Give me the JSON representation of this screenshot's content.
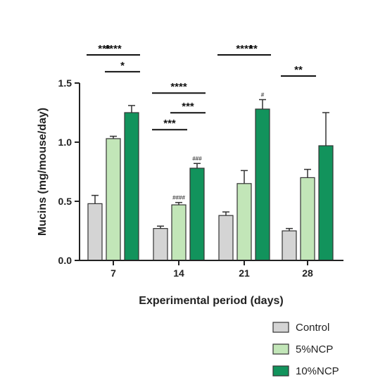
{
  "chart_data": {
    "type": "bar",
    "xlabel": "Experimental period (days)",
    "ylabel": "Mucins (mg/mouse/day)",
    "ylim": [
      0,
      1.5
    ],
    "yticks": [
      "0.0",
      "0.5",
      "1.0",
      "1.5"
    ],
    "categories": [
      "7",
      "14",
      "21",
      "28"
    ],
    "series": [
      {
        "name": "Control",
        "color": "#d4d4d4",
        "values": [
          0.48,
          0.27,
          0.38,
          0.25
        ],
        "errors": [
          0.07,
          0.02,
          0.03,
          0.02
        ]
      },
      {
        "name": "5%NCP",
        "color": "#c2e6b8",
        "values": [
          1.03,
          0.47,
          0.65,
          0.7
        ],
        "errors": [
          0.02,
          0.02,
          0.11,
          0.07
        ]
      },
      {
        "name": "10%NCP",
        "color": "#12935c",
        "values": [
          1.25,
          0.78,
          1.28,
          0.97
        ],
        "errors": [
          0.06,
          0.04,
          0.08,
          0.28
        ]
      }
    ],
    "significance": [
      {
        "group": 0,
        "from": 0,
        "to": 2,
        "level": 0,
        "label": "****"
      },
      {
        "group": 0,
        "from": 0,
        "to": 1,
        "level": 1,
        "label": "***"
      },
      {
        "group": 0,
        "from": 1,
        "to": 2,
        "level": 2,
        "label": "*"
      },
      {
        "group": 1,
        "from": 0,
        "to": 2,
        "level": 0,
        "label": "****"
      },
      {
        "group": 1,
        "from": 1,
        "to": 2,
        "level": 1,
        "label": "***"
      },
      {
        "group": 1,
        "from": 0,
        "to": 1,
        "level": 2,
        "label": "***"
      },
      {
        "group": 2,
        "from": 0,
        "to": 2,
        "level": 0,
        "label": "****"
      },
      {
        "group": 2,
        "from": 1,
        "to": 2,
        "level": 1,
        "label": "**"
      },
      {
        "group": 3,
        "from": 0,
        "to": 1,
        "level": 1,
        "label": "**"
      }
    ],
    "hash_marks": [
      {
        "group": 1,
        "series": 1,
        "label": "####"
      },
      {
        "group": 1,
        "series": 2,
        "label": "###"
      },
      {
        "group": 2,
        "series": 2,
        "label": "#"
      }
    ],
    "legend_position": "bottom-right"
  }
}
